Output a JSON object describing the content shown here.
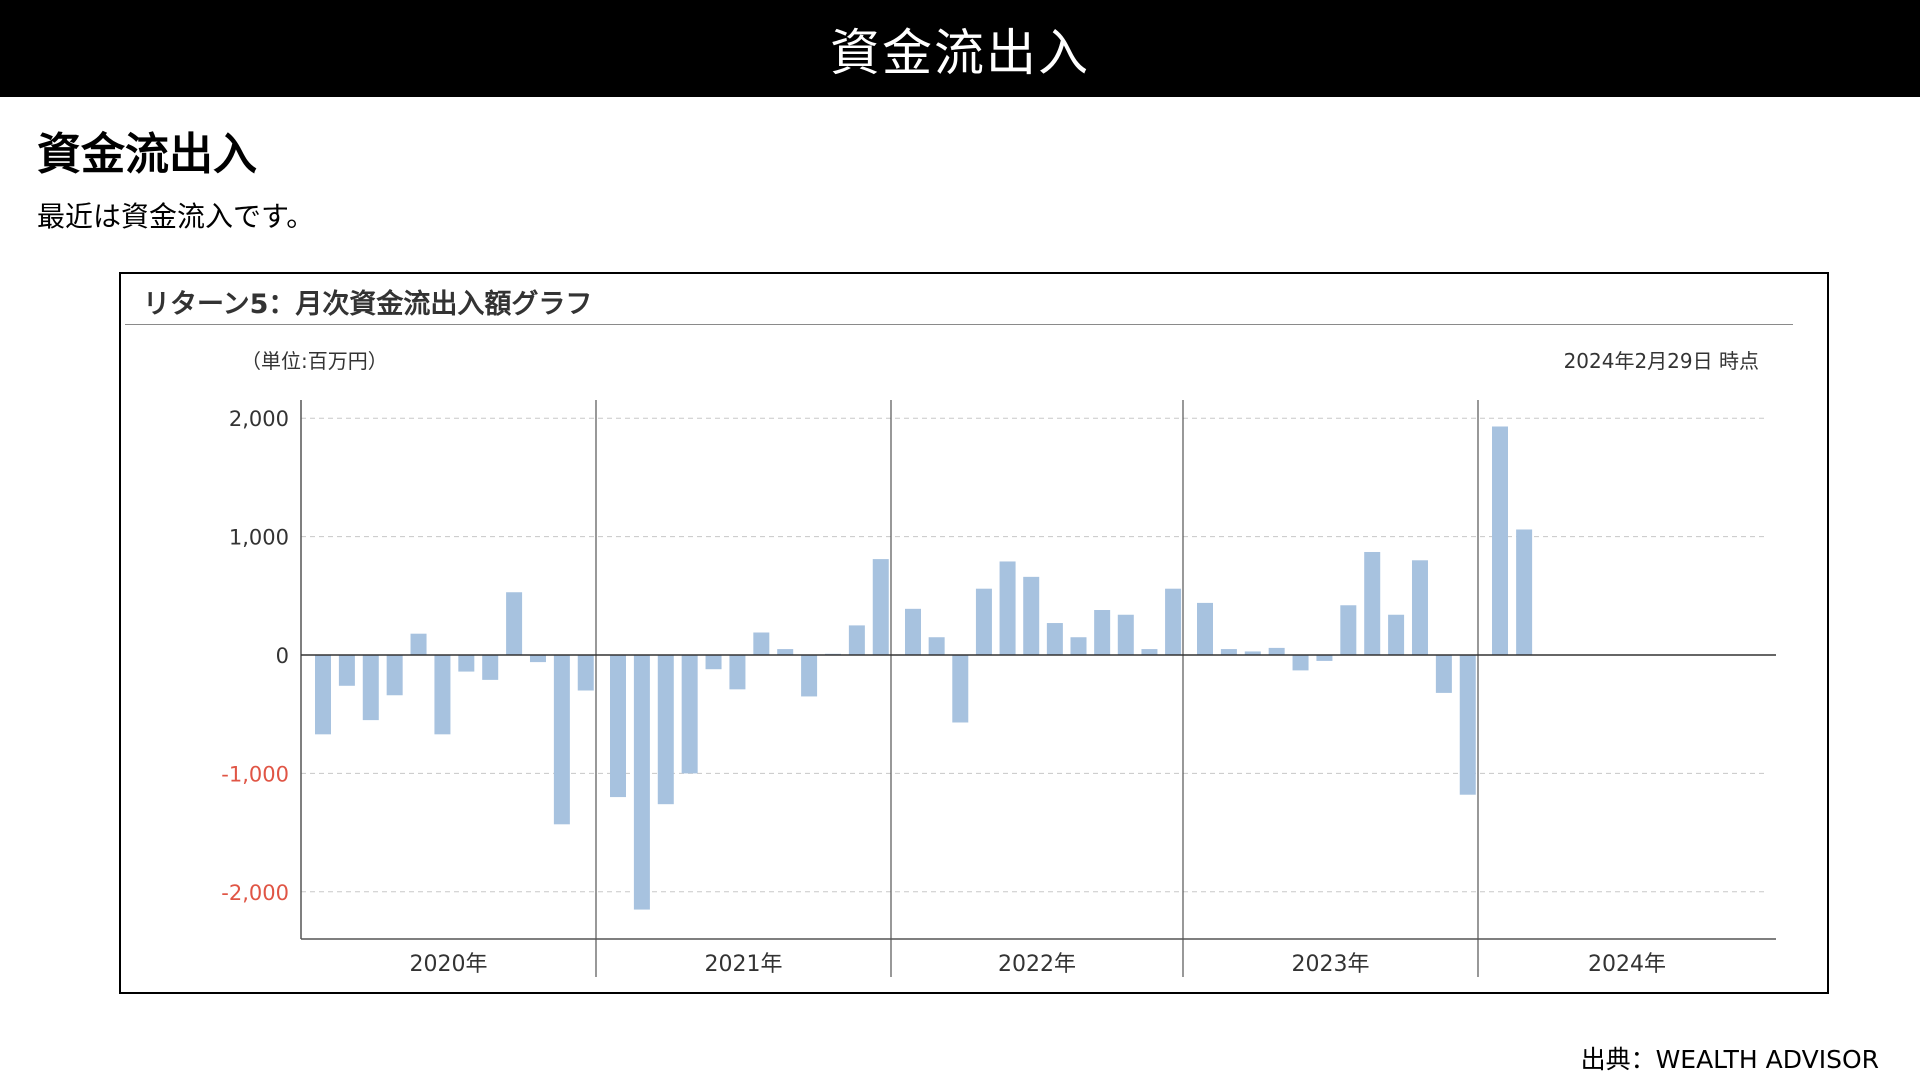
{
  "header": {
    "title": "資金流出入"
  },
  "section": {
    "title": "資金流出入",
    "description": "最近は資金流入です。"
  },
  "chart_panel": {
    "title": "リターン5：月次資金流出入額グラフ",
    "unit_label": "（単位:百万円）",
    "as_of_label": "2024年2月29日 時点"
  },
  "source": "出典：WEALTH ADVISOR",
  "colors": {
    "bar": "#a7c2df",
    "negative_tick": "#e05545",
    "header_bg": "#000000"
  },
  "chart_data": {
    "type": "bar",
    "title": "リターン5：月次資金流出入額グラフ",
    "ylabel": "（単位:百万円）",
    "ylim": [
      -2400,
      2000
    ],
    "yticks": [
      2000,
      1000,
      0,
      -1000,
      -2000
    ],
    "ytick_labels": [
      "2,000",
      "1,000",
      "0",
      "-1,000",
      "-2,000"
    ],
    "grid": "horizontal dashed",
    "year_groups": [
      {
        "label": "2020年",
        "year": 2020
      },
      {
        "label": "2021年",
        "year": 2021
      },
      {
        "label": "2022年",
        "year": 2022
      },
      {
        "label": "2023年",
        "year": 2023
      },
      {
        "label": "2024年",
        "year": 2024
      }
    ],
    "series": [
      {
        "values_by_year": {
          "2020": [
            -670,
            -260,
            -550,
            -340,
            180,
            -670,
            -140,
            -210,
            530,
            -60,
            -1430,
            -300
          ],
          "2021": [
            -1200,
            -2150,
            -1260,
            -1000,
            -120,
            -290,
            190,
            50,
            -350,
            10,
            250,
            810
          ],
          "2022": [
            390,
            150,
            -570,
            560,
            790,
            660,
            270,
            150,
            380,
            340,
            50,
            560
          ],
          "2023": [
            440,
            50,
            30,
            60,
            -130,
            -50,
            420,
            870,
            340,
            800,
            -320,
            -1180
          ],
          "2024": [
            1930,
            1060
          ]
        }
      }
    ]
  }
}
